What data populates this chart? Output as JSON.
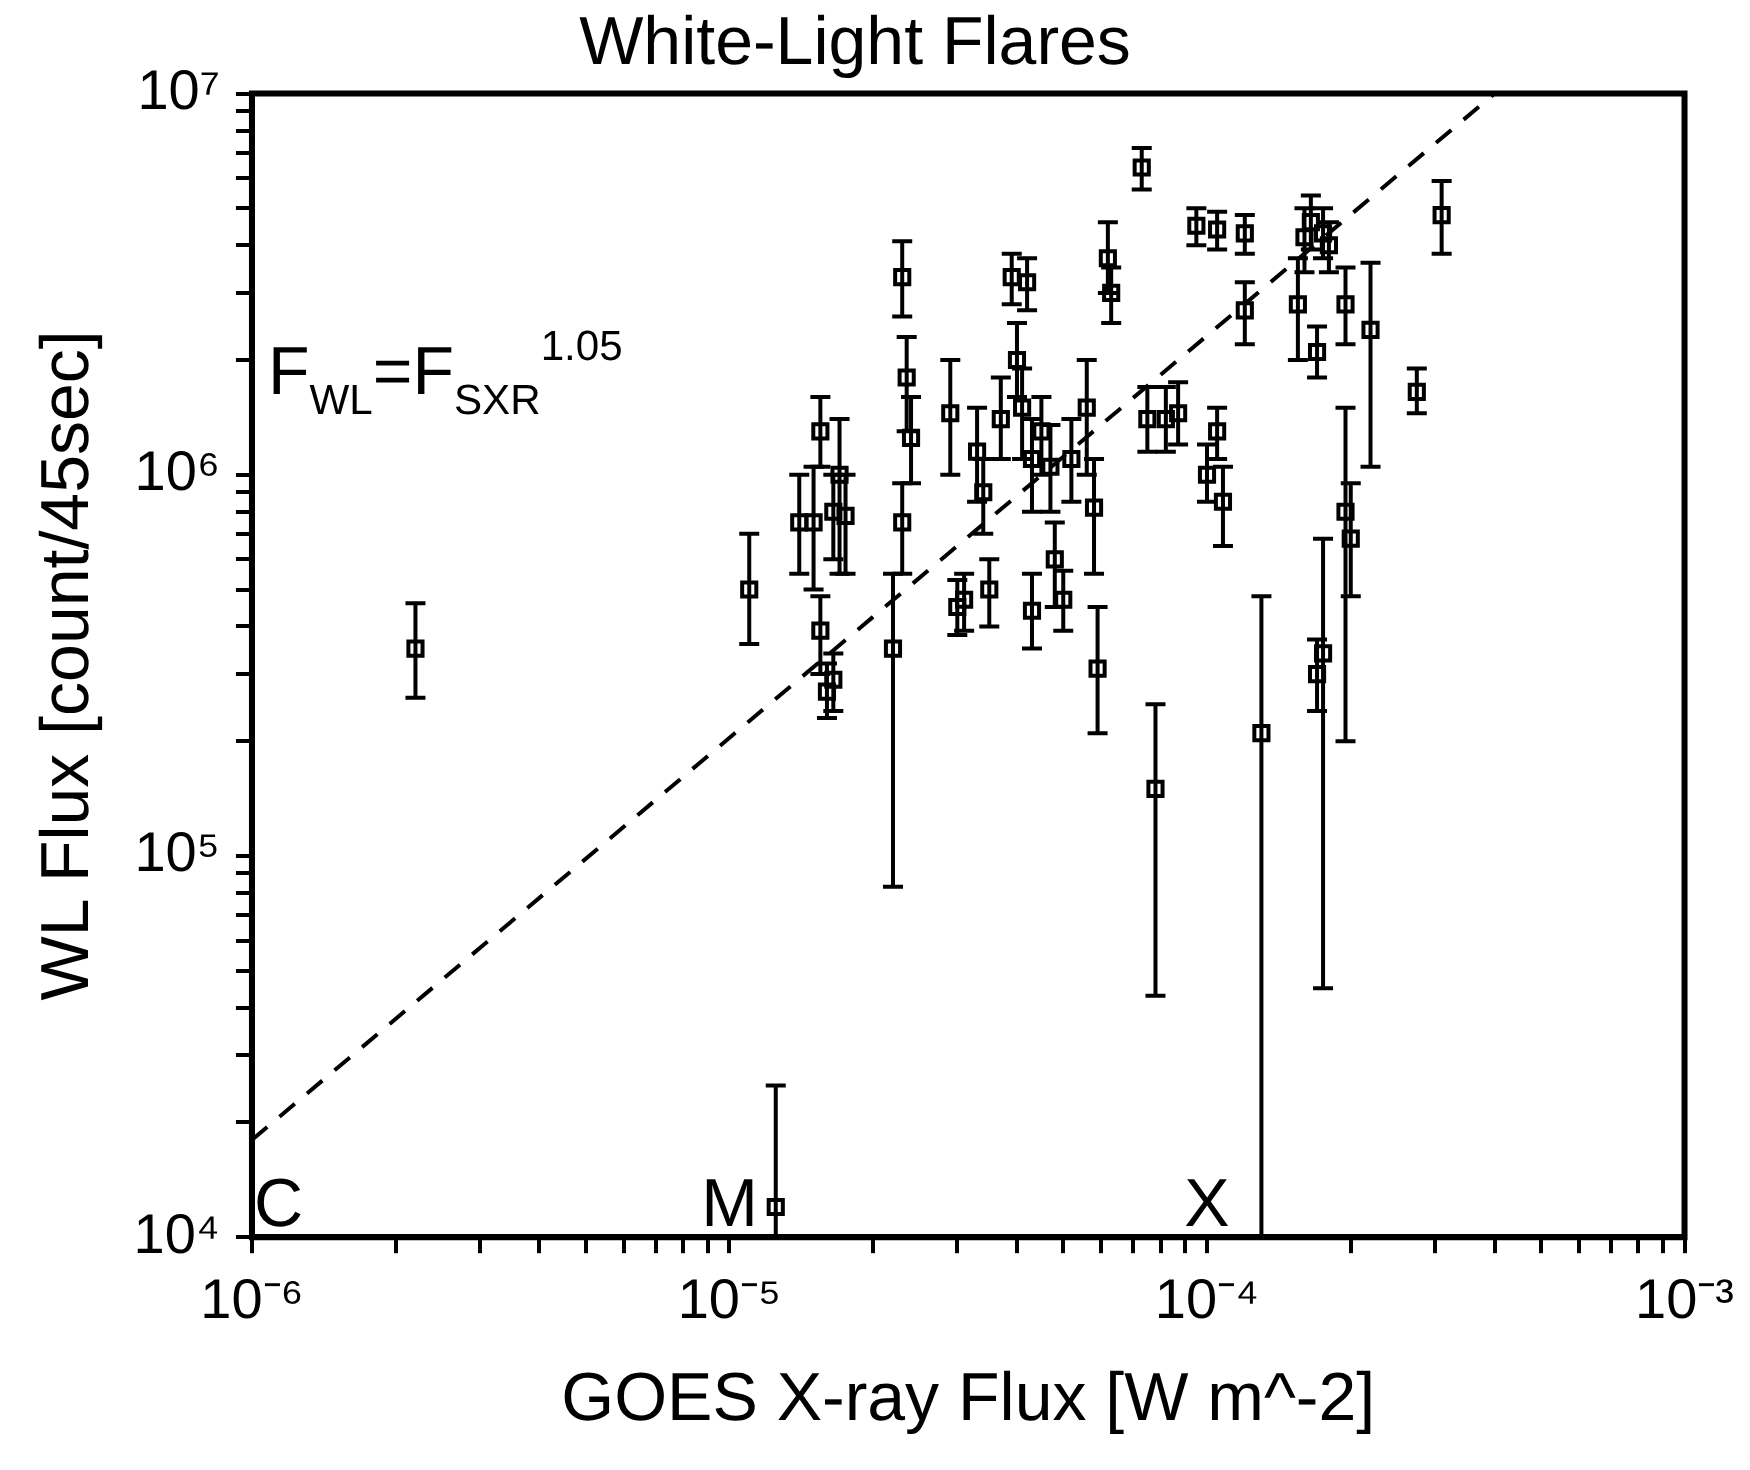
{
  "chart_data": {
    "type": "scatter",
    "title": "White-Light Flares",
    "xlabel": "GOES X-ray Flux [W m^-2]",
    "ylabel": "WL Flux [count/45sec]",
    "log": "xy",
    "grid": false,
    "legend": false,
    "marker": "square",
    "xlim": [
      1e-06,
      0.001
    ],
    "ylim": [
      10000.0,
      10000000.0
    ],
    "xticks": [
      {
        "value": 1e-06,
        "label": "10⁻⁶"
      },
      {
        "value": 2e-06,
        "label": null
      },
      {
        "value": 3e-06,
        "label": null
      },
      {
        "value": 4e-06,
        "label": null
      },
      {
        "value": 5e-06,
        "label": null
      },
      {
        "value": 6e-06,
        "label": null
      },
      {
        "value": 7e-06,
        "label": null
      },
      {
        "value": 8e-06,
        "label": null
      },
      {
        "value": 9e-06,
        "label": null
      },
      {
        "value": 1e-05,
        "label": "10⁻⁵"
      },
      {
        "value": 2e-05,
        "label": null
      },
      {
        "value": 3e-05,
        "label": null
      },
      {
        "value": 4e-05,
        "label": null
      },
      {
        "value": 5e-05,
        "label": null
      },
      {
        "value": 6e-05,
        "label": null
      },
      {
        "value": 7e-05,
        "label": null
      },
      {
        "value": 8e-05,
        "label": null
      },
      {
        "value": 9e-05,
        "label": null
      },
      {
        "value": 0.0001,
        "label": "10⁻⁴"
      },
      {
        "value": 0.0002,
        "label": null
      },
      {
        "value": 0.0003,
        "label": null
      },
      {
        "value": 0.0004,
        "label": null
      },
      {
        "value": 0.0005,
        "label": null
      },
      {
        "value": 0.0006,
        "label": null
      },
      {
        "value": 0.0007,
        "label": null
      },
      {
        "value": 0.0008,
        "label": null
      },
      {
        "value": 0.0009,
        "label": null
      },
      {
        "value": 0.001,
        "label": "10⁻³"
      }
    ],
    "yticks": [
      {
        "value": 10000.0,
        "label": "10⁴"
      },
      {
        "value": 20000.0,
        "label": null
      },
      {
        "value": 30000.0,
        "label": null
      },
      {
        "value": 40000.0,
        "label": null
      },
      {
        "value": 50000.0,
        "label": null
      },
      {
        "value": 60000.0,
        "label": null
      },
      {
        "value": 70000.0,
        "label": null
      },
      {
        "value": 80000.0,
        "label": null
      },
      {
        "value": 90000.0,
        "label": null
      },
      {
        "value": 100000.0,
        "label": "10⁵"
      },
      {
        "value": 200000.0,
        "label": null
      },
      {
        "value": 300000.0,
        "label": null
      },
      {
        "value": 400000.0,
        "label": null
      },
      {
        "value": 500000.0,
        "label": null
      },
      {
        "value": 600000.0,
        "label": null
      },
      {
        "value": 700000.0,
        "label": null
      },
      {
        "value": 800000.0,
        "label": null
      },
      {
        "value": 900000.0,
        "label": null
      },
      {
        "value": 1000000.0,
        "label": "10⁶"
      },
      {
        "value": 2000000.0,
        "label": null
      },
      {
        "value": 3000000.0,
        "label": null
      },
      {
        "value": 4000000.0,
        "label": null
      },
      {
        "value": 5000000.0,
        "label": null
      },
      {
        "value": 6000000.0,
        "label": null
      },
      {
        "value": 7000000.0,
        "label": null
      },
      {
        "value": 8000000.0,
        "label": null
      },
      {
        "value": 9000000.0,
        "label": null
      },
      {
        "value": 10000000.0,
        "label": "10⁷"
      }
    ],
    "annotations": [
      "F$_{WL}$=F$_{SXR}$$^{1.05}$",
      "C",
      "M",
      "X"
    ],
    "series": [
      {
        "color": "#000000",
        "x": [
          2.2e-06,
          1.1e-05,
          1.25e-05,
          1.4e-05,
          1.5e-05,
          1.55e-05,
          1.55e-05,
          1.6e-05,
          1.65e-05,
          1.65e-05,
          1.7e-05,
          1.75e-05,
          2.2e-05,
          2.3e-05,
          2.35e-05,
          2.3e-05,
          2.4e-05,
          2.9e-05,
          3e-05,
          3.1e-05,
          3.3e-05,
          3.4e-05,
          3.5e-05,
          3.7e-05,
          3.9e-05,
          4e-05,
          4.1e-05,
          4.2e-05,
          4.3e-05,
          4.3e-05,
          4.5e-05,
          4.7e-05,
          4.8e-05,
          5e-05,
          5.2e-05,
          5.6e-05,
          5.8e-05,
          5.9e-05,
          6.2e-05,
          6.3e-05,
          7.3e-05,
          7.5e-05,
          7.8e-05,
          8.2e-05,
          8.7e-05,
          9.5e-05,
          0.0001,
          0.000105,
          0.000105,
          0.000108,
          0.00012,
          0.00012,
          0.00013,
          0.000155,
          0.00016,
          0.000165,
          0.00017,
          0.00017,
          0.000175,
          0.000175,
          0.00018,
          0.000195,
          0.0002,
          0.000195,
          0.00022,
          0.000275,
          0.00031
        ],
        "values": [
          350000.0,
          500000.0,
          12000.0,
          750000.0,
          750000.0,
          1300000.0,
          390000.0,
          270000.0,
          290000.0,
          800000.0,
          1000000.0,
          780000.0,
          350000.0,
          750000.0,
          1800000.0,
          3300000.0,
          1250000.0,
          1450000.0,
          450000.0,
          470000.0,
          1150000.0,
          900000.0,
          500000.0,
          1400000.0,
          3300000.0,
          2000000.0,
          1500000.0,
          3200000.0,
          1100000.0,
          440000.0,
          1300000.0,
          1050000.0,
          600000.0,
          470000.0,
          1100000.0,
          1500000.0,
          820000.0,
          310000.0,
          3700000.0,
          3000000.0,
          6400000.0,
          1400000.0,
          150000.0,
          1400000.0,
          1450000.0,
          4500000.0,
          1000000.0,
          4400000.0,
          1300000.0,
          850000.0,
          4300000.0,
          2700000.0,
          210000.0,
          2800000.0,
          4200000.0,
          4600000.0,
          2100000.0,
          300000.0,
          340000.0,
          4300000.0,
          4000000.0,
          800000.0,
          680000.0,
          2800000.0,
          2400000.0,
          1650000.0,
          4800000.0
        ],
        "errors": [
          [
            260000.0,
            460000.0
          ],
          [
            360000.0,
            700000.0
          ],
          [
            10000.0,
            25000.0
          ],
          [
            550000.0,
            1000000.0
          ],
          [
            500000.0,
            1050000.0
          ],
          [
            1050000.0,
            1600000.0
          ],
          [
            300000.0,
            480000.0
          ],
          [
            230000.0,
            320000.0
          ],
          [
            240000.0,
            340000.0
          ],
          [
            600000.0,
            1000000.0
          ],
          [
            550000.0,
            1400000.0
          ],
          [
            550000.0,
            1000000.0
          ],
          [
            83000.0,
            550000.0
          ],
          [
            550000.0,
            950000.0
          ],
          [
            1300000.0,
            2300000.0
          ],
          [
            2600000.0,
            4100000.0
          ],
          [
            950000.0,
            1600000.0
          ],
          [
            1000000.0,
            2000000.0
          ],
          [
            380000.0,
            530000.0
          ],
          [
            390000.0,
            550000.0
          ],
          [
            850000.0,
            1500000.0
          ],
          [
            700000.0,
            1100000.0
          ],
          [
            400000.0,
            600000.0
          ],
          [
            1100000.0,
            1800000.0
          ],
          [
            2800000.0,
            3800000.0
          ],
          [
            1600000.0,
            2500000.0
          ],
          [
            1100000.0,
            1900000.0
          ],
          [
            2700000.0,
            3700000.0
          ],
          [
            800000.0,
            1400000.0
          ],
          [
            350000.0,
            550000.0
          ],
          [
            1000000.0,
            1600000.0
          ],
          [
            800000.0,
            1350000.0
          ],
          [
            450000.0,
            750000.0
          ],
          [
            390000.0,
            560000.0
          ],
          [
            850000.0,
            1400000.0
          ],
          [
            1000000.0,
            2000000.0
          ],
          [
            550000.0,
            1100000.0
          ],
          [
            210000.0,
            450000.0
          ],
          [
            3000000.0,
            4600000.0
          ],
          [
            2500000.0,
            3500000.0
          ],
          [
            5600000.0,
            7200000.0
          ],
          [
            1150000.0,
            1700000.0
          ],
          [
            43000.0,
            250000.0
          ],
          [
            1150000.0,
            1700000.0
          ],
          [
            1200000.0,
            1750000.0
          ],
          [
            4000000.0,
            5000000.0
          ],
          [
            850000.0,
            1200000.0
          ],
          [
            3900000.0,
            4900000.0
          ],
          [
            1100000.0,
            1500000.0
          ],
          [
            650000.0,
            1050000.0
          ],
          [
            3800000.0,
            4800000.0
          ],
          [
            2200000.0,
            3200000.0
          ],
          [
            10000.0,
            480000.0
          ],
          [
            2000000.0,
            3700000.0
          ],
          [
            3400000.0,
            5000000.0
          ],
          [
            3900000.0,
            5400000.0
          ],
          [
            1800000.0,
            2450000.0
          ],
          [
            240000.0,
            370000.0
          ],
          [
            45000.0,
            680000.0
          ],
          [
            3700000.0,
            5000000.0
          ],
          [
            3400000.0,
            4600000.0
          ],
          [
            200000.0,
            1500000.0
          ],
          [
            480000.0,
            950000.0
          ],
          [
            2200000.0,
            3500000.0
          ],
          [
            1050000.0,
            3600000.0
          ],
          [
            1450000.0,
            1900000.0
          ],
          [
            3800000.0,
            5900000.0
          ]
        ]
      },
      {
        "type": "line",
        "color": "#000000",
        "marker": "none",
        "line_style": "dashed",
        "x": [
          1e-06,
          0.0004
        ],
        "values": [
          18000.0,
          10000000.0
        ]
      }
    ]
  }
}
